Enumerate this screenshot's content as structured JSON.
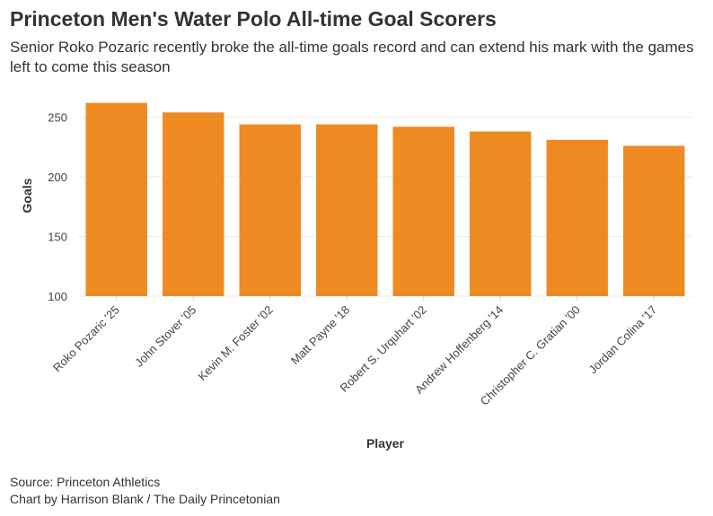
{
  "title": "Princeton Men's Water Polo All-time Goal Scorers",
  "subtitle": "Senior Roko Pozaric recently broke the all-time goals record and can extend his mark with the games left to come this season",
  "footer": {
    "source": "Source: Princeton Athletics",
    "credit": "Chart by Harrison Blank / The Daily Princetonian"
  },
  "colors": {
    "bar": "#ED8A22",
    "grid": "#EBEBEB",
    "text": "#333333"
  },
  "chart_data": {
    "type": "bar",
    "title": "Princeton Men's Water Polo All-time Goal Scorers",
    "xlabel": "Player",
    "ylabel": "Goals",
    "categories": [
      "Roko Pozaric '25",
      "John Stover '05",
      "Kevin M. Foster '02",
      "Matt Payne '18",
      "Robert S. Urquhart '02",
      "Andrew Hoffenberg '14",
      "Christopher C. Gratian '00",
      "Jordan Colina '17"
    ],
    "values": [
      262,
      254,
      244,
      244,
      242,
      238,
      231,
      226
    ],
    "ylim": [
      100,
      270
    ],
    "yticks": [
      100,
      150,
      200,
      250
    ],
    "grid": true
  }
}
